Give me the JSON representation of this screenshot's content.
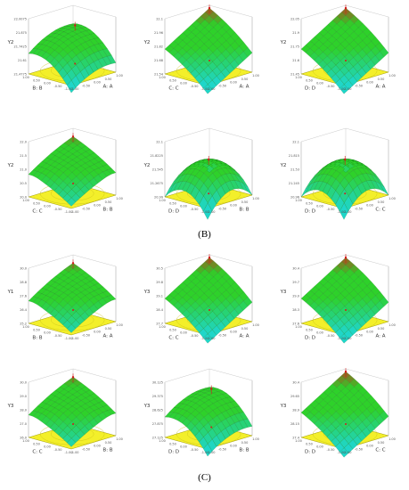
{
  "captions": {
    "b": "(B)",
    "c": "(C)"
  },
  "colors": {
    "low": "#1fd6c9",
    "mid": "#2ed12a",
    "high": "#c6301a",
    "base": "#f3ef2a",
    "mesh": "#0b5a12"
  },
  "panels": [
    {
      "z_label": "Y2",
      "x_label": "B: B",
      "y_label": "A: A",
      "z_ticks": [
        "22.0075",
        "21.875",
        "21.7425",
        "21.61",
        "21.4775"
      ],
      "shape": "ridge"
    },
    {
      "z_label": "Y2",
      "x_label": "C: C",
      "y_label": "A: A",
      "z_ticks": [
        "22.1",
        "21.96",
        "21.82",
        "21.68",
        "21.54"
      ],
      "shape": "rise"
    },
    {
      "z_label": "Y2",
      "x_label": "D: D",
      "y_label": "A: A",
      "z_ticks": [
        "22.05",
        "21.9",
        "21.75",
        "21.6",
        "21.45"
      ],
      "shape": "rise"
    },
    {
      "z_label": "Y2",
      "x_label": "C: C",
      "y_label": "B: B",
      "z_ticks": [
        "22.0",
        "21.5",
        "21.0",
        "20.5",
        "20.0"
      ],
      "shape": "dip"
    },
    {
      "z_label": "Y2",
      "x_label": "D: D",
      "y_label": "B: B",
      "z_ticks": [
        "22.1",
        "21.8225",
        "21.545",
        "21.2675",
        "20.99"
      ],
      "shape": "dome"
    },
    {
      "z_label": "Y2",
      "x_label": "D: D",
      "y_label": "C: C",
      "z_ticks": [
        "22.1",
        "21.815",
        "21.53",
        "21.245",
        "20.96"
      ],
      "shape": "dome"
    },
    {
      "z_label": "Y1",
      "x_label": "B: B",
      "y_label": "A: A",
      "z_ticks": [
        "30.0",
        "28.8",
        "27.6",
        "26.4",
        "25.2"
      ],
      "shape": "dip"
    },
    {
      "z_label": "Y3",
      "x_label": "C: C",
      "y_label": "A: A",
      "z_ticks": [
        "30.5",
        "29.8",
        "29.1",
        "28.4",
        "27.7"
      ],
      "shape": "rise"
    },
    {
      "z_label": "Y3",
      "x_label": "D: D",
      "y_label": "A: A",
      "z_ticks": [
        "30.4",
        "29.7",
        "29.0",
        "28.3",
        "27.6"
      ],
      "shape": "rise"
    },
    {
      "z_label": "Y3",
      "x_label": "C: C",
      "y_label": "B: B",
      "z_ticks": [
        "30.0",
        "29.0",
        "28.0",
        "27.0",
        "26.0"
      ],
      "shape": "dip"
    },
    {
      "z_label": "Y3",
      "x_label": "D: D",
      "y_label": "B: B",
      "z_ticks": [
        "30.125",
        "29.375",
        "28.625",
        "27.875",
        "27.125"
      ],
      "shape": "ridge"
    },
    {
      "z_label": "Y3",
      "x_label": "D: D",
      "y_label": "C: C",
      "z_ticks": [
        "30.4",
        "29.65",
        "28.9",
        "28.15",
        "27.4"
      ],
      "shape": "rise"
    }
  ],
  "x_ticks": [
    "-1.00",
    "-0.50",
    "0.00",
    "0.50",
    "1.00"
  ]
}
